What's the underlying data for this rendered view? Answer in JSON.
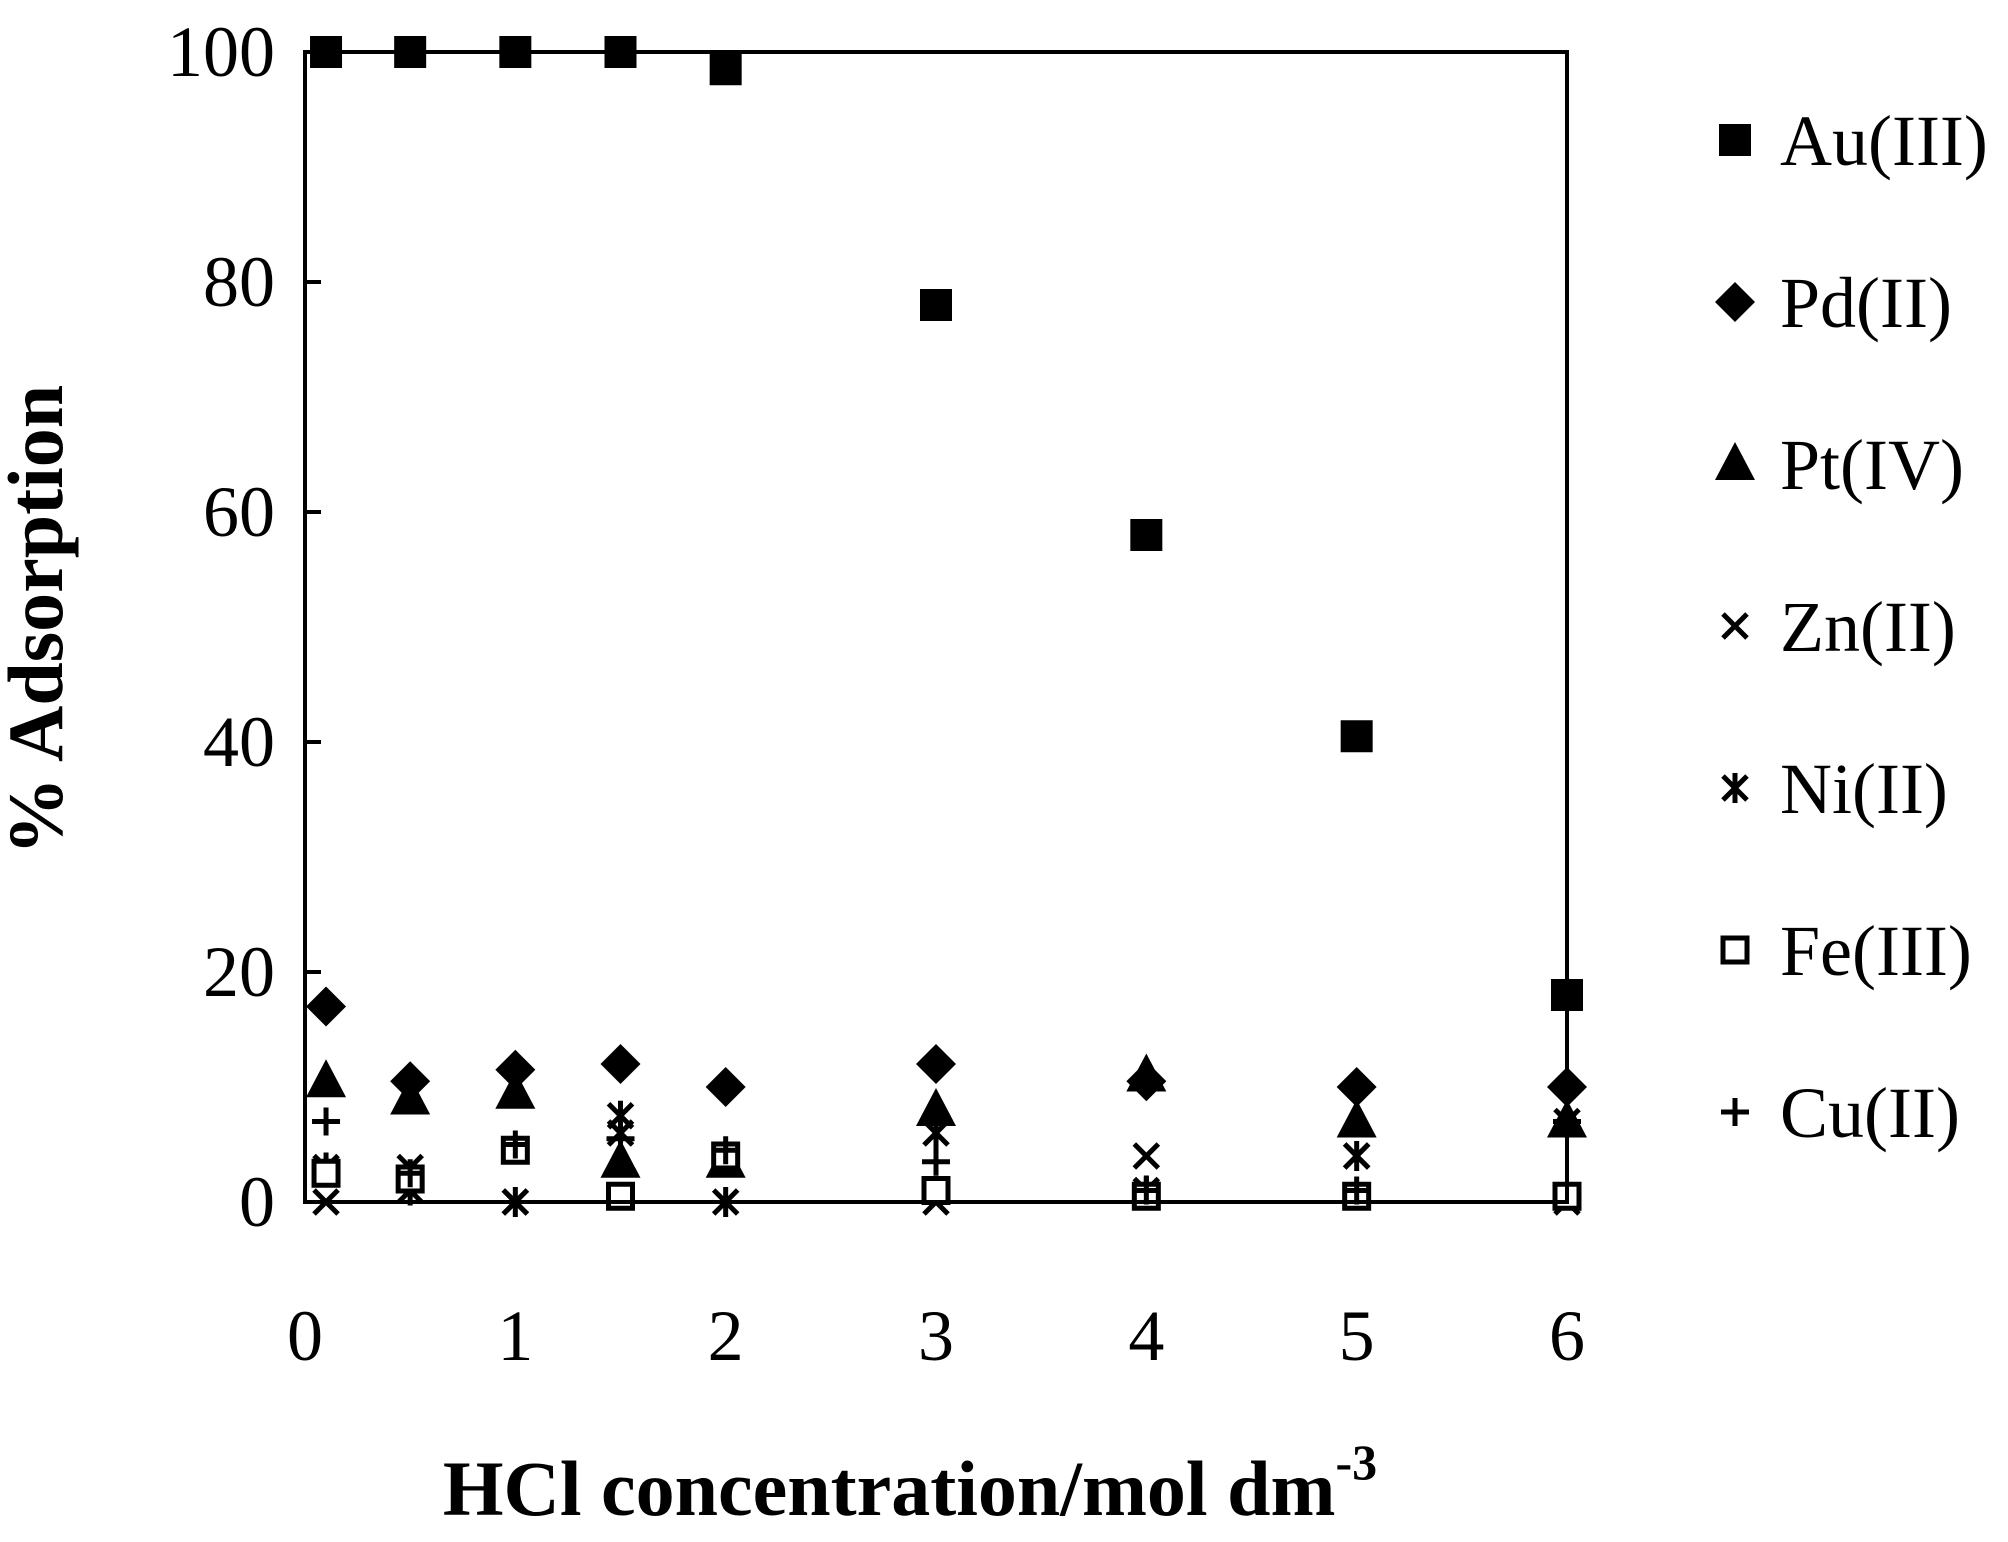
{
  "chart_data": {
    "type": "scatter",
    "xlabel": "HCl concentration/mol dm",
    "xlabel_superscript": "-3",
    "ylabel": "% Adsorption",
    "xlim": [
      0,
      6
    ],
    "ylim": [
      0,
      100
    ],
    "xticks": [
      "0",
      "1",
      "2",
      "3",
      "4",
      "5",
      "6"
    ],
    "yticks": [
      "0",
      "20",
      "40",
      "60",
      "80",
      "100"
    ],
    "grid": false,
    "legend_position": "right",
    "series": [
      {
        "name": "Au(III)",
        "marker": "filled-square",
        "x": [
          0.1,
          0.5,
          1,
          1.5,
          2,
          3,
          4,
          5,
          6
        ],
        "y": [
          100,
          100,
          100,
          100,
          98.5,
          78,
          58,
          40.5,
          18
        ]
      },
      {
        "name": "Pd(II)",
        "marker": "filled-diamond",
        "x": [
          0.1,
          0.5,
          1,
          1.5,
          2,
          3,
          4,
          5,
          6
        ],
        "y": [
          17,
          10.5,
          11.5,
          12,
          10,
          12,
          10.5,
          10,
          10
        ]
      },
      {
        "name": "Pt(IV)",
        "marker": "filled-triangle",
        "x": [
          0.1,
          0.5,
          1,
          1.5,
          2,
          3,
          4,
          5,
          6
        ],
        "y": [
          10.5,
          9,
          9.5,
          3.5,
          3.5,
          8,
          11,
          7,
          7
        ]
      },
      {
        "name": "Zn(II)",
        "marker": "x",
        "x": [
          0.1,
          0.5,
          1,
          1.5,
          2,
          3,
          4,
          5,
          6
        ],
        "y": [
          0,
          3,
          0,
          6,
          4,
          0,
          4,
          4,
          0
        ]
      },
      {
        "name": "Ni(II)",
        "marker": "asterisk",
        "x": [
          0.1,
          0.5,
          1,
          1.5,
          2,
          3,
          4,
          5,
          6
        ],
        "y": [
          3,
          1,
          0,
          7.5,
          0,
          6,
          1,
          4,
          7
        ]
      },
      {
        "name": "Fe(III)",
        "marker": "open-square",
        "x": [
          0.1,
          0.5,
          1,
          1.5,
          2,
          3,
          4,
          5,
          6
        ],
        "y": [
          2.5,
          2,
          4.5,
          0.5,
          4,
          1,
          0.5,
          0.5,
          0.5
        ]
      },
      {
        "name": "Cu(II)",
        "marker": "plus",
        "x": [
          0.1,
          0.5,
          1,
          1.5,
          2,
          3,
          4,
          5,
          6
        ],
        "y": [
          7,
          2.5,
          5,
          5.5,
          4.5,
          3.5,
          1,
          1,
          7
        ]
      }
    ]
  }
}
